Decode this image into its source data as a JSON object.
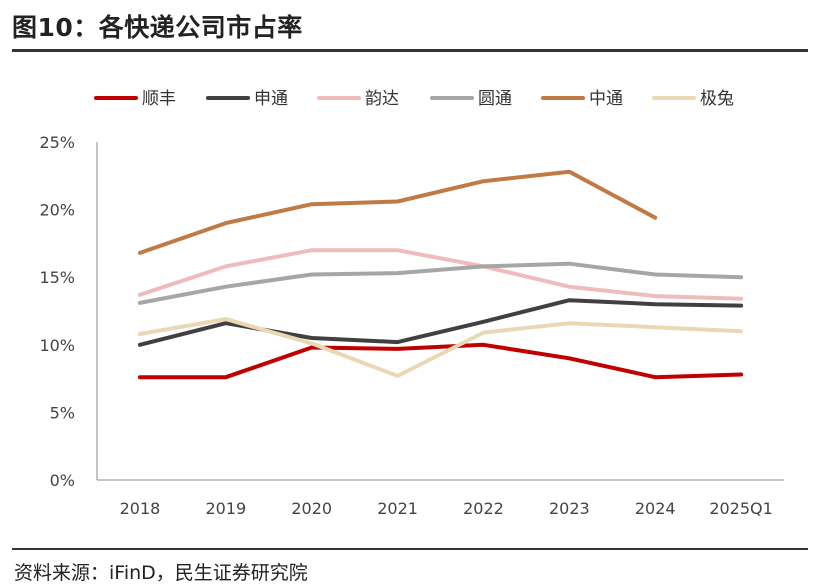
{
  "header": {
    "title": "图10：各快递公司市占率"
  },
  "footer": {
    "source": "资料来源：iFinD，民生证券研究院"
  },
  "chart_data": {
    "type": "line",
    "title": "",
    "xlabel": "",
    "ylabel": "",
    "categories": [
      "2018",
      "2019",
      "2020",
      "2021",
      "2022",
      "2023",
      "2024",
      "2025Q1"
    ],
    "ylim": [
      0,
      25
    ],
    "yticks": [
      "0%",
      "5%",
      "10%",
      "15%",
      "20%",
      "25%"
    ],
    "grid": false,
    "legend_position": "top",
    "series": [
      {
        "name": "顺丰",
        "color": "#c00000",
        "values": [
          7.6,
          7.6,
          9.8,
          9.7,
          10.0,
          9.0,
          7.6,
          7.8
        ]
      },
      {
        "name": "申通",
        "color": "#404040",
        "values": [
          10.0,
          11.6,
          10.5,
          10.2,
          11.7,
          13.3,
          13.0,
          12.9
        ]
      },
      {
        "name": "韵达",
        "color": "#efbcbc",
        "values": [
          13.7,
          15.8,
          17.0,
          17.0,
          15.8,
          14.3,
          13.6,
          13.4
        ]
      },
      {
        "name": "圆通",
        "color": "#a6a6a6",
        "values": [
          13.1,
          14.3,
          15.2,
          15.3,
          15.8,
          16.0,
          15.2,
          15.0
        ]
      },
      {
        "name": "中通",
        "color": "#c07a45",
        "values": [
          16.8,
          19.0,
          20.4,
          20.6,
          22.1,
          22.8,
          19.4,
          null
        ]
      },
      {
        "name": "极兔",
        "color": "#ead8b4",
        "values": [
          10.8,
          11.9,
          10.1,
          7.7,
          10.9,
          11.6,
          11.3,
          11.0
        ]
      }
    ]
  }
}
